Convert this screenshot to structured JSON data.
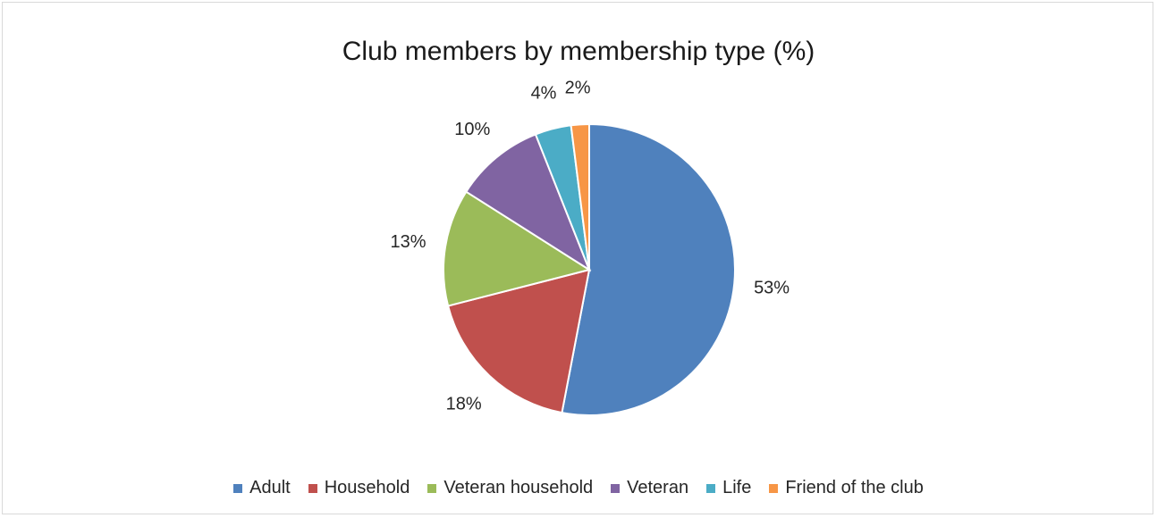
{
  "chart_data": {
    "type": "pie",
    "title": "Club members by membership type (%)",
    "categories": [
      "Adult",
      "Household",
      "Veteran household",
      "Veteran",
      "Life",
      "Friend of the club"
    ],
    "values": [
      53,
      18,
      13,
      10,
      4,
      2
    ],
    "labels": [
      "53%",
      "18%",
      "13%",
      "10%",
      "4%",
      "2%"
    ],
    "colors": [
      "#4f81bd",
      "#c0504d",
      "#9bbb59",
      "#8064a2",
      "#4bacc6",
      "#f79646"
    ],
    "legend_position": "bottom"
  },
  "legend": [
    {
      "label": "Adult",
      "color": "#4f81bd"
    },
    {
      "label": "Household",
      "color": "#c0504d"
    },
    {
      "label": "Veteran household",
      "color": "#9bbb59"
    },
    {
      "label": "Veteran",
      "color": "#8064a2"
    },
    {
      "label": "Life",
      "color": "#4bacc6"
    },
    {
      "label": "Friend of the club",
      "color": "#f79646"
    }
  ]
}
